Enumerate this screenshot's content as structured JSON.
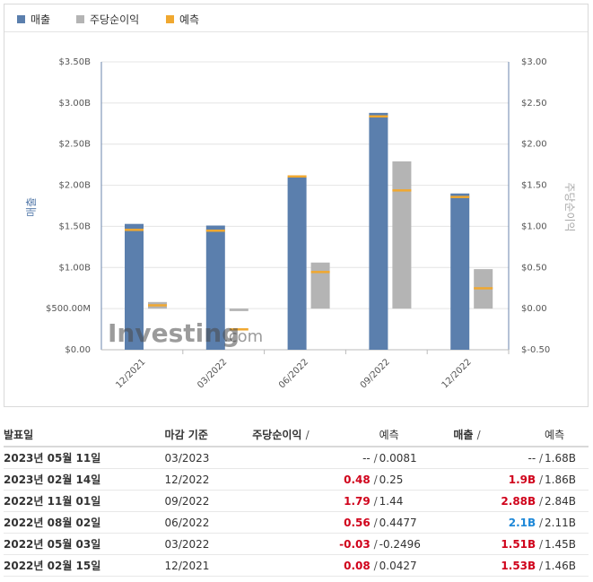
{
  "legend": [
    {
      "label": "매출",
      "color": "#5b7fad"
    },
    {
      "label": "주당순이익",
      "color": "#b4b4b4"
    },
    {
      "label": "예측",
      "color": "#f0a830"
    }
  ],
  "chart_data": {
    "type": "bar",
    "categories": [
      "12/2021",
      "03/2022",
      "06/2022",
      "09/2022",
      "12/2022"
    ],
    "series": [
      {
        "name": "매출",
        "axis": "left",
        "values": [
          1.53,
          1.51,
          2.1,
          2.88,
          1.9
        ]
      },
      {
        "name": "주당순이익",
        "axis": "right",
        "values": [
          0.08,
          -0.03,
          0.56,
          1.79,
          0.48
        ]
      }
    ],
    "forecast": {
      "revenue": [
        1.46,
        1.45,
        2.11,
        2.84,
        1.86
      ],
      "eps": [
        0.0427,
        -0.2496,
        0.4477,
        1.44,
        0.25
      ]
    },
    "y_left": {
      "label": "매출",
      "min": 0,
      "max": 3.5,
      "ticks": [
        "$0.00",
        "$500.00M",
        "$1.00B",
        "$1.50B",
        "$2.00B",
        "$2.50B",
        "$3.00B",
        "$3.50B"
      ]
    },
    "y_right": {
      "label": "주당순이익",
      "min": -0.5,
      "max": 3.0,
      "ticks": [
        "$-0.50",
        "$0.00",
        "$0.50",
        "$1.00",
        "$1.50",
        "$2.00",
        "$2.50",
        "$3.00"
      ]
    },
    "grid": true,
    "watermark": "Investing.com"
  },
  "table": {
    "headers": {
      "date": "발표일",
      "period": "마감 기준",
      "eps": "주당순이익",
      "eps_forecast": "예측",
      "revenue": "매출",
      "revenue_forecast": "예측",
      "slash": "/"
    },
    "rows": [
      {
        "date": "2023년 05월 11일",
        "period": "03/2023",
        "eps": "--",
        "eps_color": "plain",
        "eps_forecast": "0.0081",
        "revenue": "--",
        "revenue_color": "plain",
        "revenue_forecast": "1.68B"
      },
      {
        "date": "2023년 02월 14일",
        "period": "12/2022",
        "eps": "0.48",
        "eps_color": "red",
        "eps_forecast": "0.25",
        "revenue": "1.9B",
        "revenue_color": "red",
        "revenue_forecast": "1.86B"
      },
      {
        "date": "2022년 11월 01일",
        "period": "09/2022",
        "eps": "1.79",
        "eps_color": "red",
        "eps_forecast": "1.44",
        "revenue": "2.88B",
        "revenue_color": "red",
        "revenue_forecast": "2.84B"
      },
      {
        "date": "2022년 08월 02일",
        "period": "06/2022",
        "eps": "0.56",
        "eps_color": "red",
        "eps_forecast": "0.4477",
        "revenue": "2.1B",
        "revenue_color": "blue",
        "revenue_forecast": "2.11B"
      },
      {
        "date": "2022년 05월 03일",
        "period": "03/2022",
        "eps": "-0.03",
        "eps_color": "red",
        "eps_forecast": "-0.2496",
        "revenue": "1.51B",
        "revenue_color": "red",
        "revenue_forecast": "1.45B"
      },
      {
        "date": "2022년 02월 15일",
        "period": "12/2021",
        "eps": "0.08",
        "eps_color": "red",
        "eps_forecast": "0.0427",
        "revenue": "1.53B",
        "revenue_color": "red",
        "revenue_forecast": "1.46B"
      }
    ]
  }
}
